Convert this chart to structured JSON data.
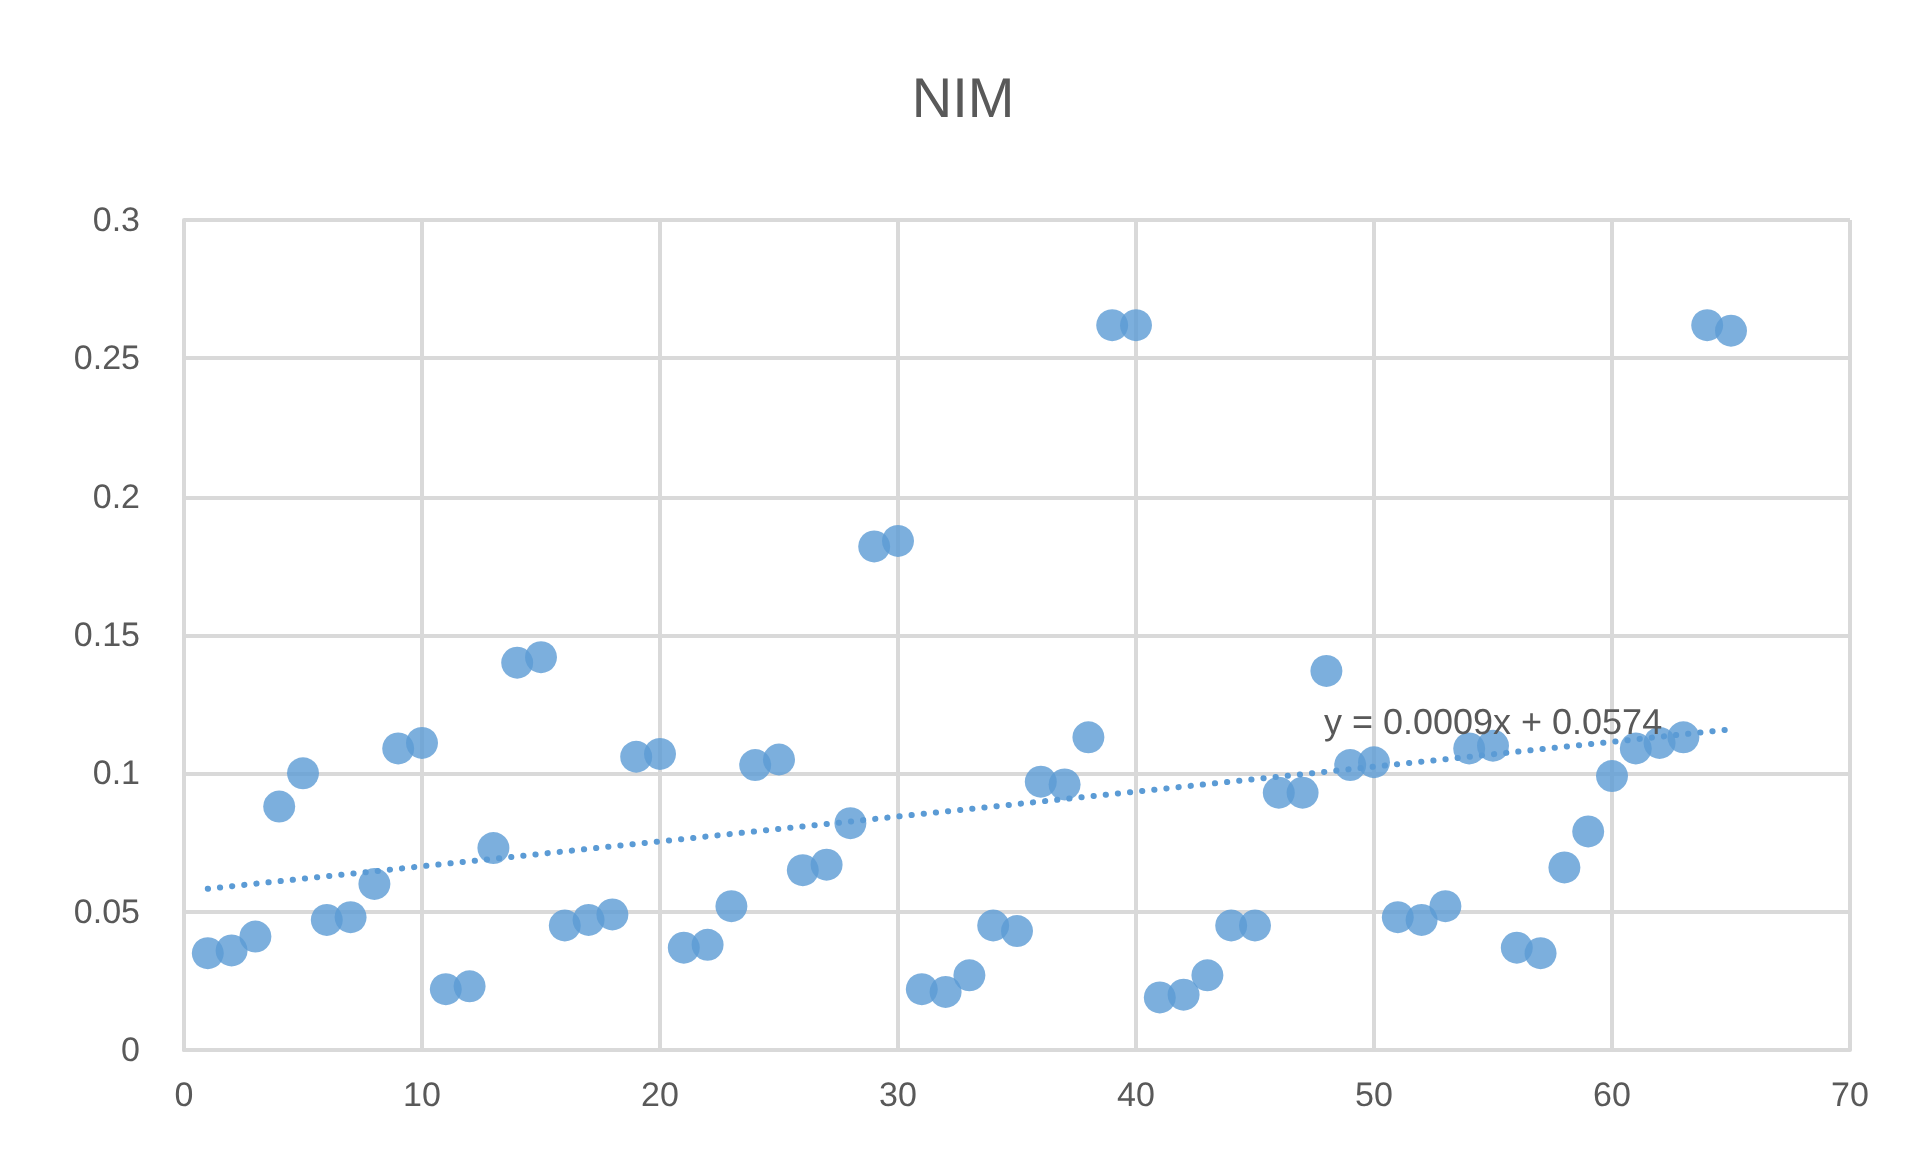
{
  "chart_data": {
    "type": "scatter",
    "title": "NIM",
    "x": [
      1,
      2,
      3,
      4,
      5,
      6,
      7,
      8,
      9,
      10,
      11,
      12,
      13,
      14,
      15,
      16,
      17,
      18,
      19,
      20,
      21,
      22,
      23,
      24,
      25,
      26,
      27,
      28,
      29,
      30,
      31,
      32,
      33,
      34,
      35,
      36,
      37,
      38,
      39,
      40,
      41,
      42,
      43,
      44,
      45,
      46,
      47,
      48,
      49,
      50,
      51,
      52,
      53,
      54,
      55,
      56,
      57,
      58,
      59,
      60,
      61,
      62,
      63,
      64,
      65
    ],
    "series": [
      {
        "color": "#5b9bd5",
        "marker": "circle",
        "values": [
          0.035,
          0.036,
          0.041,
          0.088,
          0.1,
          0.047,
          0.048,
          0.06,
          0.109,
          0.111,
          0.022,
          0.023,
          0.073,
          0.14,
          0.142,
          0.045,
          0.047,
          0.049,
          0.106,
          0.107,
          0.037,
          0.038,
          0.052,
          0.103,
          0.105,
          0.065,
          0.067,
          0.082,
          0.182,
          0.184,
          0.022,
          0.021,
          0.027,
          0.045,
          0.043,
          0.097,
          0.096,
          0.113,
          0.262,
          0.262,
          0.019,
          0.02,
          0.027,
          0.045,
          0.045,
          0.093,
          0.093,
          0.137,
          0.103,
          0.104,
          0.048,
          0.047,
          0.052,
          0.109,
          0.11,
          0.037,
          0.035,
          0.066,
          0.079,
          0.099,
          0.109,
          0.111,
          0.113,
          0.262,
          0.26
        ]
      },
      {
        "type": "line",
        "color": "#5b9bd5",
        "line_style": "dotted",
        "marker": "none",
        "x": [
          1,
          65
        ],
        "values": [
          0.0583,
          0.1159
        ]
      }
    ],
    "annotations": [
      {
        "text": "y = 0.0009x + 0.0574",
        "x": 55,
        "y": 0.112
      }
    ],
    "xlim": [
      0,
      70
    ],
    "xticks": [
      0,
      10,
      20,
      30,
      40,
      50,
      60,
      70
    ],
    "ylim": [
      0,
      0.3
    ],
    "yticks": [
      0,
      0.05,
      0.1,
      0.15,
      0.2,
      0.25,
      0.3
    ],
    "grid": true
  }
}
